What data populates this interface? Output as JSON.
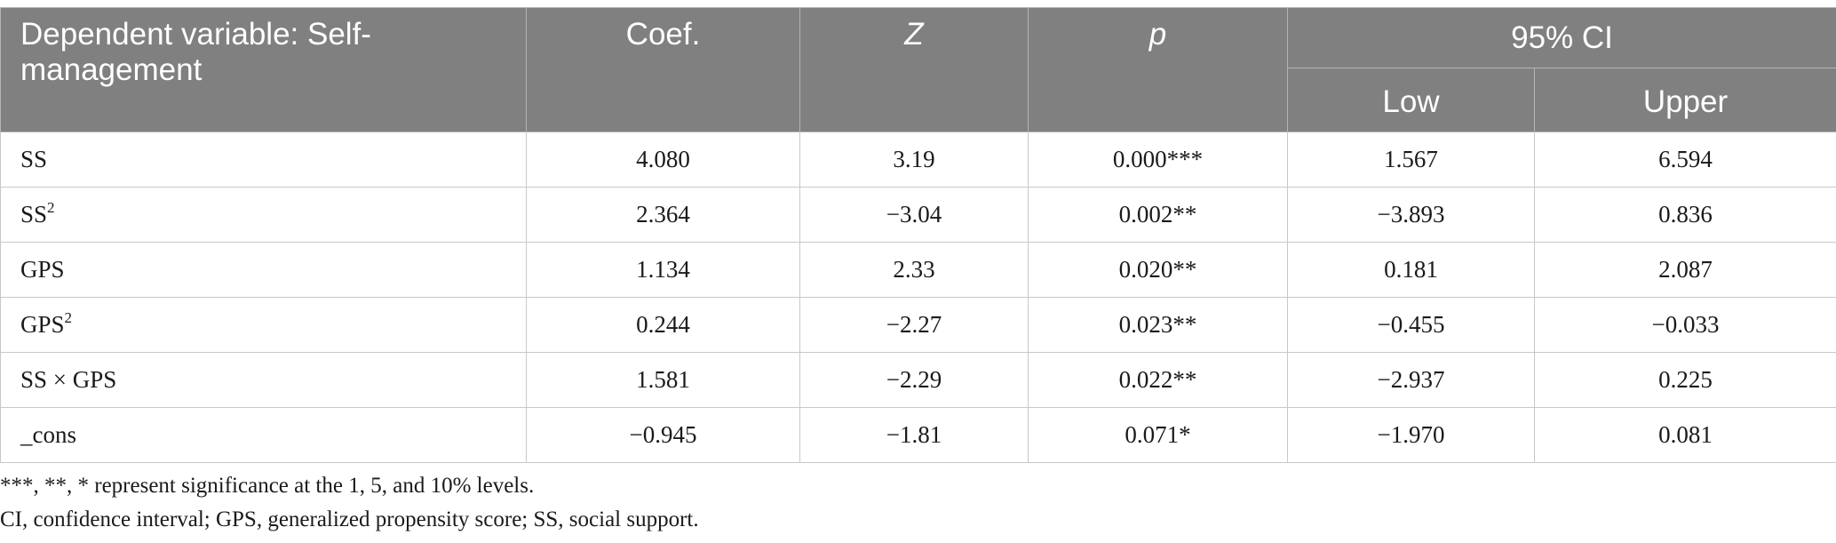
{
  "table": {
    "header": {
      "dependent_label": "Dependent variable: Self-management",
      "coef_label": "Coef.",
      "z_label": "Z",
      "p_label": "p",
      "ci_label": "95% CI",
      "ci_low_label": "Low",
      "ci_upper_label": "Upper"
    },
    "rows": [
      {
        "base": "SS",
        "sup": "",
        "tail": "",
        "coef": "4.080",
        "z": "3.19",
        "p": "0.000***",
        "low": "1.567",
        "upper": "6.594"
      },
      {
        "base": "SS",
        "sup": "2",
        "tail": "",
        "coef": "2.364",
        "z": "−3.04",
        "p": "0.002**",
        "low": "−3.893",
        "upper": "0.836"
      },
      {
        "base": "GPS",
        "sup": "",
        "tail": "",
        "coef": "1.134",
        "z": "2.33",
        "p": "0.020**",
        "low": "0.181",
        "upper": "2.087"
      },
      {
        "base": "GPS",
        "sup": "2",
        "tail": "",
        "coef": "0.244",
        "z": "−2.27",
        "p": "0.023**",
        "low": "−0.455",
        "upper": "−0.033"
      },
      {
        "base": "SS × GPS",
        "sup": "",
        "tail": "",
        "coef": "1.581",
        "z": "−2.29",
        "p": "0.022**",
        "low": "−2.937",
        "upper": "0.225"
      },
      {
        "base": "_cons",
        "sup": "",
        "tail": "",
        "coef": "−0.945",
        "z": "−1.81",
        "p": "0.071*",
        "low": "−1.970",
        "upper": "0.081"
      }
    ]
  },
  "notes": {
    "significance": "***, **, * represent significance at the 1, 5, and 10% levels.",
    "abbreviations": "CI, confidence interval; GPS, generalized propensity score; SS, social support."
  }
}
